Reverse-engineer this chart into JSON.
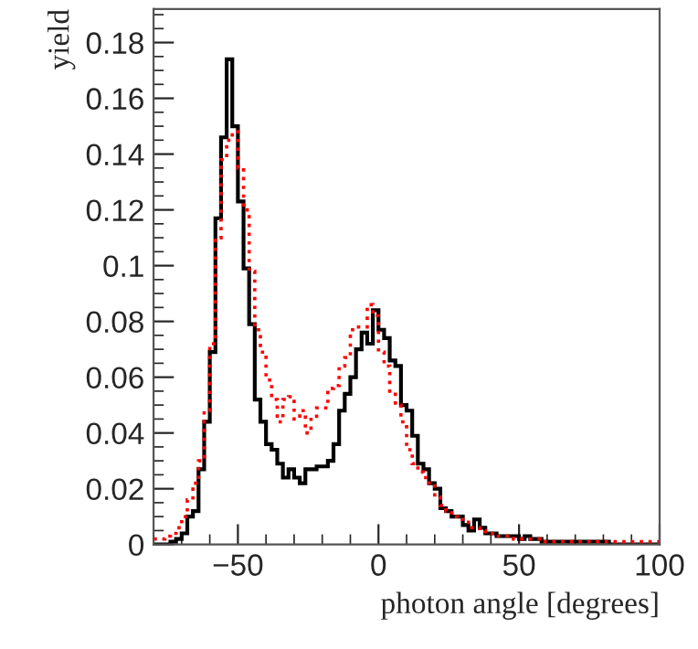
{
  "chart_data": {
    "type": "histogram",
    "xlabel": "photon angle [degrees]",
    "ylabel": "yield",
    "bins": [
      -80,
      -78,
      -76,
      -74,
      -72,
      -70,
      -68,
      -66,
      -64,
      -62,
      -60,
      -58,
      -56,
      -54,
      -52,
      -50,
      -48,
      -46,
      -44,
      -42,
      -40,
      -38,
      -36,
      -34,
      -32,
      -30,
      -28,
      -26,
      -24,
      -22,
      -20,
      -18,
      -16,
      -14,
      -12,
      -10,
      -8,
      -6,
      -4,
      -2,
      0,
      2,
      4,
      6,
      8,
      10,
      12,
      14,
      16,
      18,
      20,
      22,
      24,
      26,
      28,
      30,
      32,
      34,
      36,
      38,
      40,
      42,
      44,
      46,
      48,
      50,
      52,
      54,
      56,
      58,
      60,
      62,
      64,
      66,
      68,
      70,
      72,
      74,
      76,
      78,
      80,
      82,
      84,
      86,
      88,
      90,
      92,
      94,
      96,
      98,
      100
    ],
    "series": [
      {
        "color": "#000000",
        "line_style": "solid",
        "values": [
          0,
          0,
          0,
          0.001,
          0.002,
          0.004,
          0.01,
          0.012,
          0.027,
          0.044,
          0.069,
          0.117,
          0.146,
          0.174,
          0.15,
          0.123,
          0.099,
          0.079,
          0.052,
          0.044,
          0.036,
          0.034,
          0.029,
          0.024,
          0.027,
          0.024,
          0.022,
          0.027,
          0.027,
          0.028,
          0.028,
          0.03,
          0.036,
          0.048,
          0.054,
          0.06,
          0.07,
          0.076,
          0.072,
          0.084,
          0.077,
          0.074,
          0.066,
          0.064,
          0.05,
          0.048,
          0.039,
          0.029,
          0.027,
          0.022,
          0.02,
          0.013,
          0.012,
          0.01,
          0.01,
          0.007,
          0.005,
          0.009,
          0.006,
          0.004,
          0.004,
          0.003,
          0.003,
          0.003,
          0.003,
          0.002,
          0.003,
          0.002,
          0.002,
          0.001,
          0.001,
          0.001,
          0.001,
          0.001,
          0.001,
          0.001,
          0.001,
          0.001,
          0.001,
          0.001,
          0.001,
          0,
          0,
          0,
          0,
          0,
          0,
          0,
          0,
          0
        ]
      },
      {
        "color": "#ff0000",
        "line_style": "dotted",
        "values": [
          0.002,
          0.002,
          0.003,
          0.004,
          0.006,
          0.01,
          0.016,
          0.022,
          0.03,
          0.048,
          0.072,
          0.11,
          0.138,
          0.145,
          0.148,
          0.135,
          0.12,
          0.098,
          0.077,
          0.069,
          0.059,
          0.052,
          0.044,
          0.052,
          0.053,
          0.045,
          0.048,
          0.04,
          0.046,
          0.049,
          0.049,
          0.056,
          0.057,
          0.064,
          0.067,
          0.077,
          0.078,
          0.078,
          0.086,
          0.082,
          0.069,
          0.064,
          0.055,
          0.05,
          0.044,
          0.034,
          0.029,
          0.026,
          0.024,
          0.021,
          0.017,
          0.014,
          0.012,
          0.01,
          0.009,
          0.008,
          0.006,
          0.006,
          0.005,
          0.004,
          0.004,
          0.003,
          0.003,
          0.003,
          0.002,
          0.002,
          0.002,
          0.002,
          0.002,
          0.001,
          0.001,
          0.001,
          0.001,
          0.001,
          0.001,
          0.001,
          0.001,
          0.001,
          0.001,
          0.001,
          0.001,
          0.001,
          0.001,
          0.001,
          0.001,
          0.001,
          0.001,
          0.001,
          0.001,
          0.001
        ]
      }
    ],
    "xlim": [
      -80,
      100
    ],
    "ylim": [
      0,
      0.192
    ],
    "xticks": [
      {
        "value": -50,
        "label": "−50"
      },
      0,
      50,
      100
    ],
    "yticks": [
      0,
      0.02,
      0.04,
      0.06,
      0.08,
      0.1,
      0.12,
      0.14,
      0.16,
      0.18
    ],
    "grid": false
  }
}
